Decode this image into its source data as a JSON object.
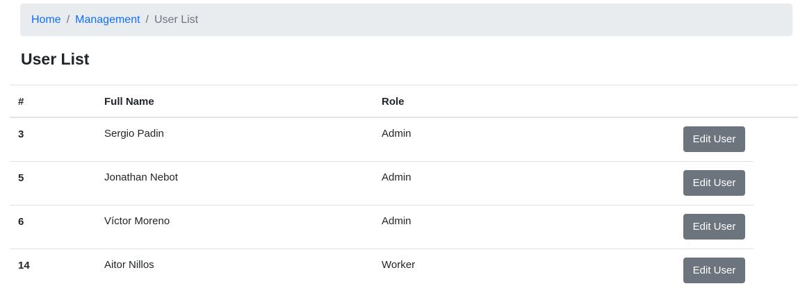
{
  "breadcrumb": {
    "items": [
      {
        "label": "Home"
      },
      {
        "label": "Management"
      }
    ],
    "current": "User List",
    "separator": "/"
  },
  "page_title": "User List",
  "table": {
    "headers": [
      "#",
      "Full Name",
      "Role"
    ],
    "rows": [
      {
        "id": "3",
        "name": "Sergio Padin",
        "role": "Admin",
        "action": "Edit User"
      },
      {
        "id": "5",
        "name": "Jonathan Nebot",
        "role": "Admin",
        "action": "Edit User"
      },
      {
        "id": "6",
        "name": "Víctor Moreno",
        "role": "Admin",
        "action": "Edit User"
      },
      {
        "id": "14",
        "name": "Aitor Nillos",
        "role": "Worker",
        "action": "Edit User"
      }
    ]
  },
  "colors": {
    "link": "#0d6efd",
    "button": "#6c757d",
    "breadcrumb_bg": "#e9ecef"
  }
}
